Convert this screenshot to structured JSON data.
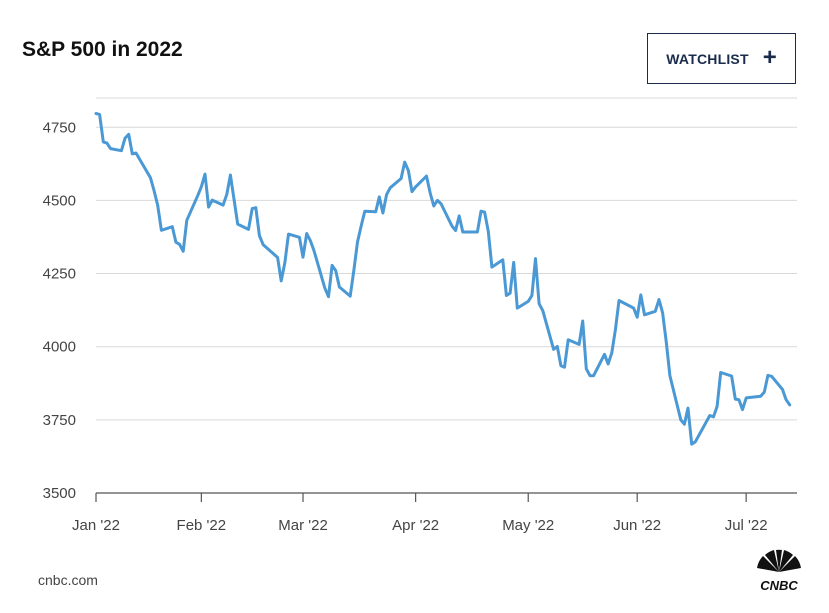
{
  "header": {
    "title": "S&P 500 in 2022"
  },
  "watchlist_button": {
    "label": "WATCHLIST",
    "icon": "plus-icon"
  },
  "footer": {
    "source": "cnbc.com",
    "logo_text": "CNBC"
  },
  "colors": {
    "line": "#4a98d4",
    "grid": "#d9d9d9",
    "accent": "#1a2b4c"
  },
  "chart_data": {
    "type": "line",
    "title": "S&P 500 in 2022",
    "xlabel": "",
    "ylabel": "",
    "ylim": [
      3500,
      4850
    ],
    "yticks": [
      3500,
      3750,
      4000,
      4250,
      4500,
      4750
    ],
    "xlim": [
      "2022-01-03",
      "2022-07-15"
    ],
    "xticks": [
      {
        "date": "2022-01-03",
        "label": "Jan '22"
      },
      {
        "date": "2022-02-01",
        "label": "Feb '22"
      },
      {
        "date": "2022-03-01",
        "label": "Mar '22"
      },
      {
        "date": "2022-04-01",
        "label": "Apr '22"
      },
      {
        "date": "2022-05-02",
        "label": "May '22"
      },
      {
        "date": "2022-06-01",
        "label": "Jun '22"
      },
      {
        "date": "2022-07-01",
        "label": "Jul '22"
      }
    ],
    "grid": true,
    "series": [
      {
        "values": [
          {
            "x": "2022-01-03",
            "y": 4797
          },
          {
            "x": "2022-01-04",
            "y": 4794
          },
          {
            "x": "2022-01-05",
            "y": 4700
          },
          {
            "x": "2022-01-06",
            "y": 4696
          },
          {
            "x": "2022-01-07",
            "y": 4677
          },
          {
            "x": "2022-01-10",
            "y": 4670
          },
          {
            "x": "2022-01-11",
            "y": 4713
          },
          {
            "x": "2022-01-12",
            "y": 4726
          },
          {
            "x": "2022-01-13",
            "y": 4659
          },
          {
            "x": "2022-01-14",
            "y": 4662
          },
          {
            "x": "2022-01-18",
            "y": 4577
          },
          {
            "x": "2022-01-19",
            "y": 4533
          },
          {
            "x": "2022-01-20",
            "y": 4483
          },
          {
            "x": "2022-01-21",
            "y": 4398
          },
          {
            "x": "2022-01-24",
            "y": 4410
          },
          {
            "x": "2022-01-25",
            "y": 4357
          },
          {
            "x": "2022-01-26",
            "y": 4350
          },
          {
            "x": "2022-01-27",
            "y": 4326
          },
          {
            "x": "2022-01-28",
            "y": 4432
          },
          {
            "x": "2022-01-31",
            "y": 4516
          },
          {
            "x": "2022-02-01",
            "y": 4546
          },
          {
            "x": "2022-02-02",
            "y": 4590
          },
          {
            "x": "2022-02-03",
            "y": 4477
          },
          {
            "x": "2022-02-04",
            "y": 4501
          },
          {
            "x": "2022-02-07",
            "y": 4484
          },
          {
            "x": "2022-02-08",
            "y": 4521
          },
          {
            "x": "2022-02-09",
            "y": 4587
          },
          {
            "x": "2022-02-10",
            "y": 4504
          },
          {
            "x": "2022-02-11",
            "y": 4419
          },
          {
            "x": "2022-02-14",
            "y": 4401
          },
          {
            "x": "2022-02-15",
            "y": 4472
          },
          {
            "x": "2022-02-16",
            "y": 4475
          },
          {
            "x": "2022-02-17",
            "y": 4380
          },
          {
            "x": "2022-02-18",
            "y": 4349
          },
          {
            "x": "2022-02-22",
            "y": 4305
          },
          {
            "x": "2022-02-23",
            "y": 4225
          },
          {
            "x": "2022-02-24",
            "y": 4288
          },
          {
            "x": "2022-02-25",
            "y": 4385
          },
          {
            "x": "2022-02-28",
            "y": 4374
          },
          {
            "x": "2022-03-01",
            "y": 4306
          },
          {
            "x": "2022-03-02",
            "y": 4387
          },
          {
            "x": "2022-03-03",
            "y": 4363
          },
          {
            "x": "2022-03-04",
            "y": 4329
          },
          {
            "x": "2022-03-07",
            "y": 4201
          },
          {
            "x": "2022-03-08",
            "y": 4171
          },
          {
            "x": "2022-03-09",
            "y": 4278
          },
          {
            "x": "2022-03-10",
            "y": 4260
          },
          {
            "x": "2022-03-11",
            "y": 4204
          },
          {
            "x": "2022-03-14",
            "y": 4173
          },
          {
            "x": "2022-03-15",
            "y": 4262
          },
          {
            "x": "2022-03-16",
            "y": 4358
          },
          {
            "x": "2022-03-17",
            "y": 4412
          },
          {
            "x": "2022-03-18",
            "y": 4463
          },
          {
            "x": "2022-03-21",
            "y": 4461
          },
          {
            "x": "2022-03-22",
            "y": 4512
          },
          {
            "x": "2022-03-23",
            "y": 4457
          },
          {
            "x": "2022-03-24",
            "y": 4520
          },
          {
            "x": "2022-03-25",
            "y": 4543
          },
          {
            "x": "2022-03-28",
            "y": 4575
          },
          {
            "x": "2022-03-29",
            "y": 4631
          },
          {
            "x": "2022-03-30",
            "y": 4602
          },
          {
            "x": "2022-03-31",
            "y": 4530
          },
          {
            "x": "2022-04-01",
            "y": 4546
          },
          {
            "x": "2022-04-04",
            "y": 4583
          },
          {
            "x": "2022-04-05",
            "y": 4525
          },
          {
            "x": "2022-04-06",
            "y": 4481
          },
          {
            "x": "2022-04-07",
            "y": 4500
          },
          {
            "x": "2022-04-08",
            "y": 4488
          },
          {
            "x": "2022-04-11",
            "y": 4413
          },
          {
            "x": "2022-04-12",
            "y": 4397
          },
          {
            "x": "2022-04-13",
            "y": 4447
          },
          {
            "x": "2022-04-14",
            "y": 4392
          },
          {
            "x": "2022-04-18",
            "y": 4392
          },
          {
            "x": "2022-04-19",
            "y": 4463
          },
          {
            "x": "2022-04-20",
            "y": 4460
          },
          {
            "x": "2022-04-21",
            "y": 4394
          },
          {
            "x": "2022-04-22",
            "y": 4272
          },
          {
            "x": "2022-04-25",
            "y": 4297
          },
          {
            "x": "2022-04-26",
            "y": 4175
          },
          {
            "x": "2022-04-27",
            "y": 4183
          },
          {
            "x": "2022-04-28",
            "y": 4288
          },
          {
            "x": "2022-04-29",
            "y": 4132
          },
          {
            "x": "2022-05-02",
            "y": 4155
          },
          {
            "x": "2022-05-03",
            "y": 4175
          },
          {
            "x": "2022-05-04",
            "y": 4301
          },
          {
            "x": "2022-05-05",
            "y": 4147
          },
          {
            "x": "2022-05-06",
            "y": 4123
          },
          {
            "x": "2022-05-09",
            "y": 3991
          },
          {
            "x": "2022-05-10",
            "y": 4001
          },
          {
            "x": "2022-05-11",
            "y": 3935
          },
          {
            "x": "2022-05-12",
            "y": 3930
          },
          {
            "x": "2022-05-13",
            "y": 4024
          },
          {
            "x": "2022-05-16",
            "y": 4008
          },
          {
            "x": "2022-05-17",
            "y": 4088
          },
          {
            "x": "2022-05-18",
            "y": 3924
          },
          {
            "x": "2022-05-19",
            "y": 3901
          },
          {
            "x": "2022-05-20",
            "y": 3901
          },
          {
            "x": "2022-05-23",
            "y": 3974
          },
          {
            "x": "2022-05-24",
            "y": 3941
          },
          {
            "x": "2022-05-25",
            "y": 3979
          },
          {
            "x": "2022-05-26",
            "y": 4058
          },
          {
            "x": "2022-05-27",
            "y": 4158
          },
          {
            "x": "2022-05-31",
            "y": 4132
          },
          {
            "x": "2022-06-01",
            "y": 4101
          },
          {
            "x": "2022-06-02",
            "y": 4177
          },
          {
            "x": "2022-06-03",
            "y": 4109
          },
          {
            "x": "2022-06-06",
            "y": 4121
          },
          {
            "x": "2022-06-07",
            "y": 4161
          },
          {
            "x": "2022-06-08",
            "y": 4116
          },
          {
            "x": "2022-06-09",
            "y": 4018
          },
          {
            "x": "2022-06-10",
            "y": 3901
          },
          {
            "x": "2022-06-13",
            "y": 3750
          },
          {
            "x": "2022-06-14",
            "y": 3735
          },
          {
            "x": "2022-06-15",
            "y": 3790
          },
          {
            "x": "2022-06-16",
            "y": 3667
          },
          {
            "x": "2022-06-17",
            "y": 3675
          },
          {
            "x": "2022-06-21",
            "y": 3765
          },
          {
            "x": "2022-06-22",
            "y": 3760
          },
          {
            "x": "2022-06-23",
            "y": 3796
          },
          {
            "x": "2022-06-24",
            "y": 3912
          },
          {
            "x": "2022-06-27",
            "y": 3900
          },
          {
            "x": "2022-06-28",
            "y": 3821
          },
          {
            "x": "2022-06-29",
            "y": 3819
          },
          {
            "x": "2022-06-30",
            "y": 3785
          },
          {
            "x": "2022-07-01",
            "y": 3825
          },
          {
            "x": "2022-07-05",
            "y": 3831
          },
          {
            "x": "2022-07-06",
            "y": 3845
          },
          {
            "x": "2022-07-07",
            "y": 3902
          },
          {
            "x": "2022-07-08",
            "y": 3899
          },
          {
            "x": "2022-07-11",
            "y": 3854
          },
          {
            "x": "2022-07-12",
            "y": 3819
          },
          {
            "x": "2022-07-13",
            "y": 3801
          }
        ]
      }
    ]
  }
}
